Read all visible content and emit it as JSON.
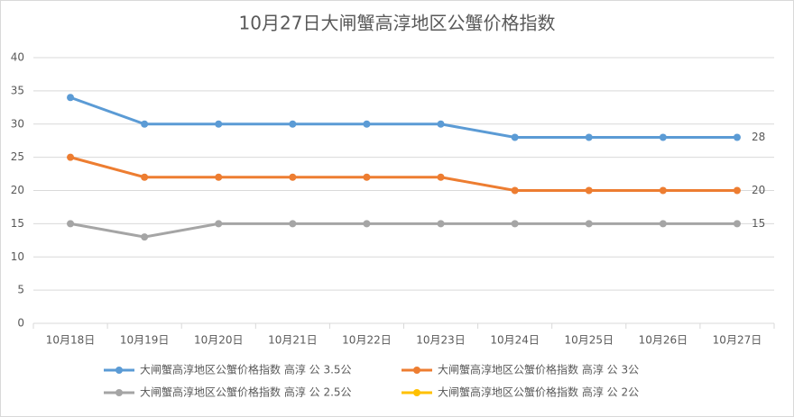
{
  "chart_data": {
    "type": "line",
    "title": "10月27日大闸蟹高淳地区公蟹价格指数",
    "categories": [
      "10月18日",
      "10月19日",
      "10月20日",
      "10月21日",
      "10月22日",
      "10月23日",
      "10月24日",
      "10月25日",
      "10月26日",
      "10月27日"
    ],
    "series": [
      {
        "name": "大闸蟹高淳地区公蟹价格指数 高淳 公 3.5公",
        "color": "#5b9bd5",
        "values": [
          34,
          30,
          30,
          30,
          30,
          30,
          28,
          28,
          28,
          28
        ]
      },
      {
        "name": "大闸蟹高淳地区公蟹价格指数 高淳 公 3公",
        "color": "#ed7d31",
        "values": [
          25,
          22,
          22,
          22,
          22,
          22,
          20,
          20,
          20,
          20
        ]
      },
      {
        "name": "大闸蟹高淳地区公蟹价格指数 高淳 公 2.5公",
        "color": "#a5a5a5",
        "values": [
          15,
          13,
          15,
          15,
          15,
          15,
          15,
          15,
          15,
          15
        ]
      },
      {
        "name": "大闸蟹高淳地区公蟹价格指数 高淳 公 2公",
        "color": "#ffc000",
        "values": [
          null,
          null,
          null,
          null,
          null,
          null,
          null,
          null,
          null,
          null
        ]
      }
    ],
    "ylim": [
      0,
      40
    ],
    "yticks": [
      0,
      5,
      10,
      15,
      20,
      25,
      30,
      35,
      40
    ],
    "grid": true
  }
}
